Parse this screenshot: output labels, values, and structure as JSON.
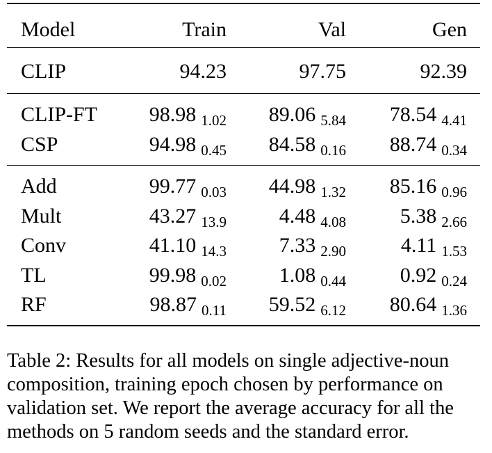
{
  "table": {
    "headers": [
      "Model",
      "Train",
      "Val",
      "Gen"
    ],
    "groups": [
      [
        {
          "model": "CLIP",
          "train": "94.23",
          "train_se": "",
          "val": "97.75",
          "val_se": "",
          "gen": "92.39",
          "gen_se": ""
        }
      ],
      [
        {
          "model": "CLIP-FT",
          "train": "98.98",
          "train_se": "1.02",
          "val": "89.06",
          "val_se": "5.84",
          "gen": "78.54",
          "gen_se": "4.41"
        },
        {
          "model": "CSP",
          "train": "94.98",
          "train_se": "0.45",
          "val": "84.58",
          "val_se": "0.16",
          "gen": "88.74",
          "gen_se": "0.34"
        }
      ],
      [
        {
          "model": "Add",
          "train": "99.77",
          "train_se": "0.03",
          "val": "44.98",
          "val_se": "1.32",
          "gen": "85.16",
          "gen_se": "0.96"
        },
        {
          "model": "Mult",
          "train": "43.27",
          "train_se": "13.9",
          "val": "4.48",
          "val_se": "4.08",
          "gen": "5.38",
          "gen_se": "2.66"
        },
        {
          "model": "Conv",
          "train": "41.10",
          "train_se": "14.3",
          "val": "7.33",
          "val_se": "2.90",
          "gen": "4.11",
          "gen_se": "1.53"
        },
        {
          "model": "TL",
          "train": "99.98",
          "train_se": "0.02",
          "val": "1.08",
          "val_se": "0.44",
          "gen": "0.92",
          "gen_se": "0.24"
        },
        {
          "model": "RF",
          "train": "98.87",
          "train_se": "0.11",
          "val": "59.52",
          "val_se": "6.12",
          "gen": "80.64",
          "gen_se": "1.36"
        }
      ]
    ]
  },
  "caption": "Table 2: Results for all models on single adjective-noun composition, training epoch chosen by performance on validation set. We report the average accuracy for all the methods on 5 random seeds and the standard error."
}
